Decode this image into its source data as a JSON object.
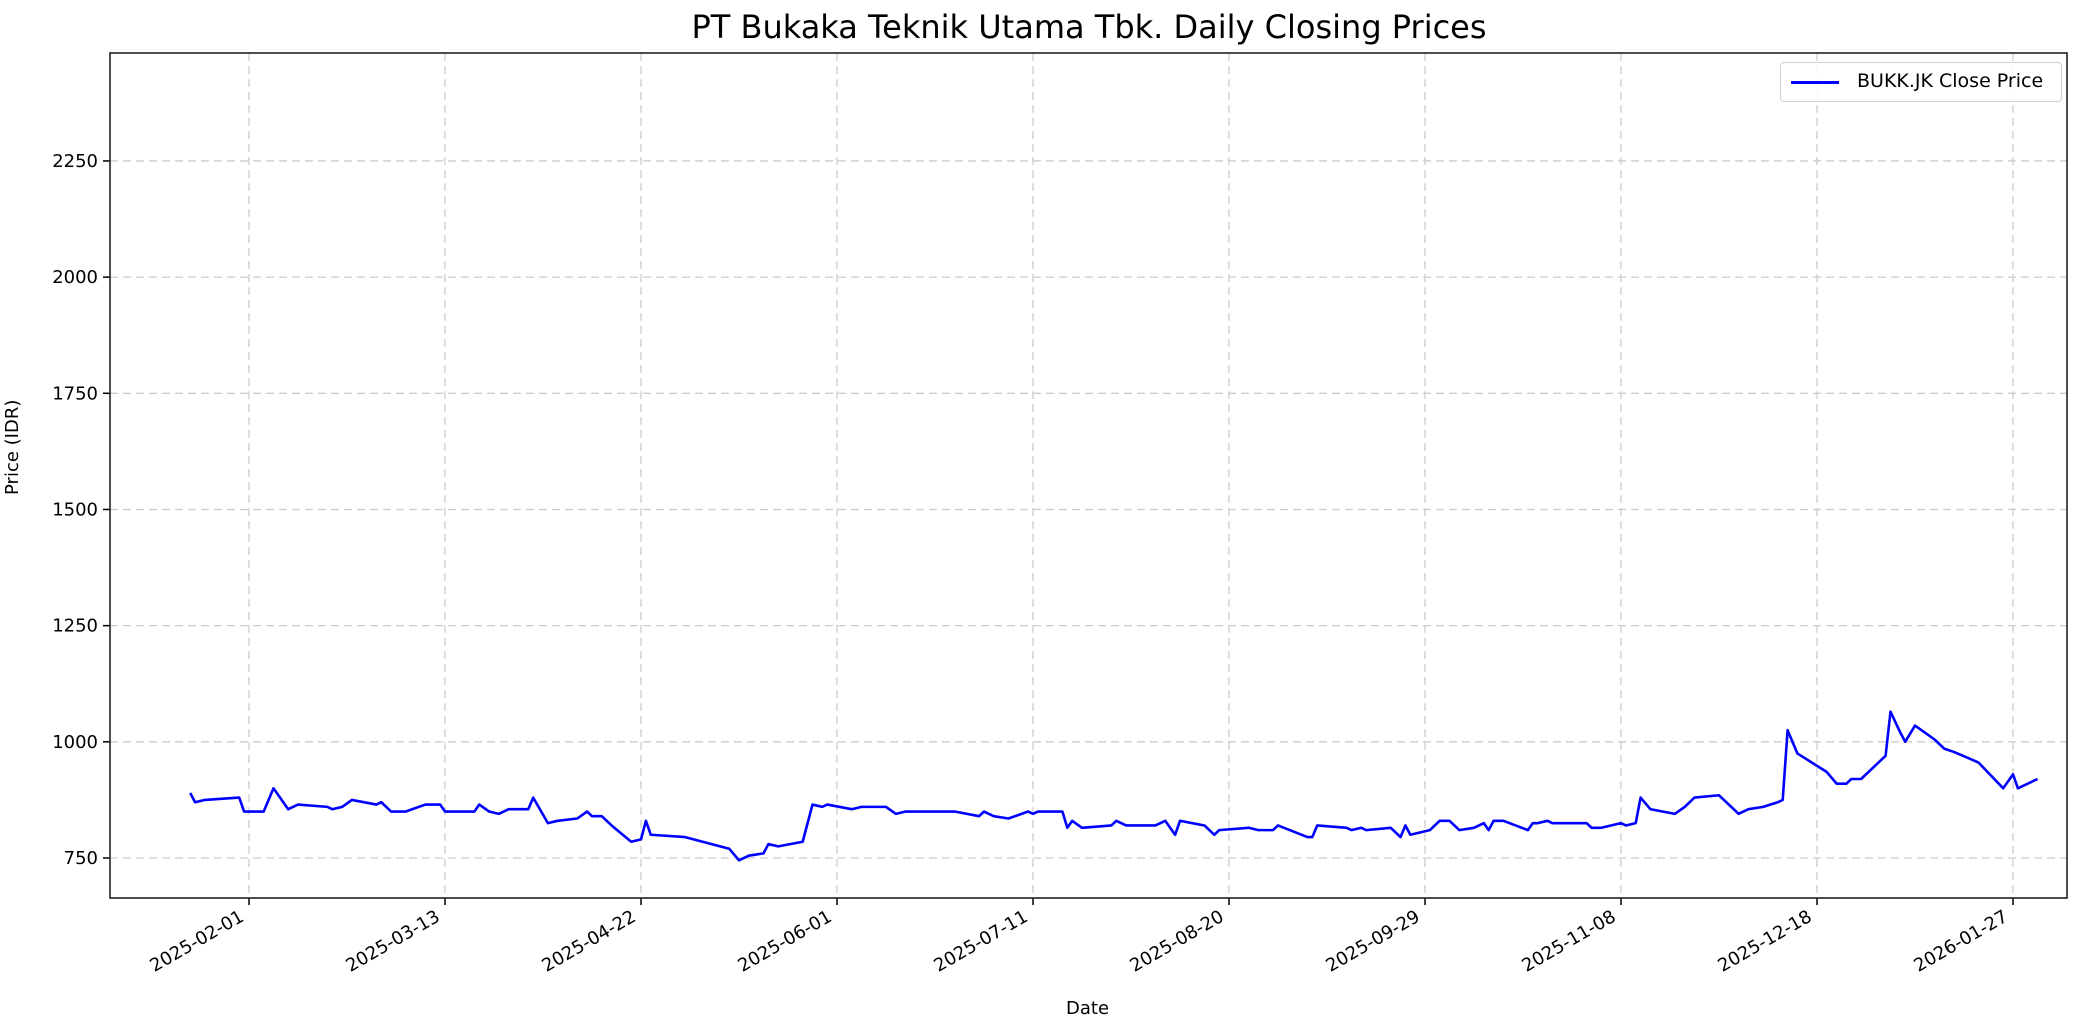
{
  "chart_data": {
    "type": "line",
    "title": "PT Bukaka Teknik Utama Tbk. Daily Closing Prices",
    "xlabel": "Date",
    "ylabel": "Price (IDR)",
    "ylim": [
      665,
      2430
    ],
    "xlim": [
      "2025-01-11",
      "2026-02-05"
    ],
    "grid": true,
    "legend_position": "upper right",
    "x_ticks": [
      "2025-02-01",
      "2025-03-13",
      "2025-04-22",
      "2025-06-01",
      "2025-07-11",
      "2025-08-20",
      "2025-09-29",
      "2025-11-08",
      "2025-12-18",
      "2026-01-27"
    ],
    "y_ticks": [
      750,
      1000,
      1250,
      1500,
      1750,
      2000,
      2250
    ],
    "series": [
      {
        "name": "BUKK.JK Close Price",
        "color": "#0000ff",
        "points": [
          [
            "2025-01-20",
            890
          ],
          [
            "2025-01-21",
            870
          ],
          [
            "2025-01-23",
            875
          ],
          [
            "2025-01-30",
            880
          ],
          [
            "2025-01-31",
            850
          ],
          [
            "2025-02-04",
            850
          ],
          [
            "2025-02-06",
            900
          ],
          [
            "2025-02-09",
            855
          ],
          [
            "2025-02-11",
            865
          ],
          [
            "2025-02-17",
            860
          ],
          [
            "2025-02-18",
            855
          ],
          [
            "2025-02-20",
            860
          ],
          [
            "2025-02-22",
            875
          ],
          [
            "2025-02-27",
            865
          ],
          [
            "2025-02-28",
            870
          ],
          [
            "2025-03-02",
            850
          ],
          [
            "2025-03-05",
            850
          ],
          [
            "2025-03-09",
            865
          ],
          [
            "2025-03-12",
            865
          ],
          [
            "2025-03-13",
            850
          ],
          [
            "2025-03-19",
            850
          ],
          [
            "2025-03-20",
            865
          ],
          [
            "2025-03-22",
            850
          ],
          [
            "2025-03-24",
            845
          ],
          [
            "2025-03-26",
            855
          ],
          [
            "2025-03-30",
            855
          ],
          [
            "2025-03-31",
            880
          ],
          [
            "2025-04-03",
            825
          ],
          [
            "2025-04-05",
            830
          ],
          [
            "2025-04-09",
            835
          ],
          [
            "2025-04-11",
            850
          ],
          [
            "2025-04-12",
            840
          ],
          [
            "2025-04-14",
            840
          ],
          [
            "2025-04-16",
            820
          ],
          [
            "2025-04-20",
            785
          ],
          [
            "2025-04-22",
            790
          ],
          [
            "2025-04-23",
            830
          ],
          [
            "2025-04-24",
            800
          ],
          [
            "2025-05-01",
            795
          ],
          [
            "2025-05-10",
            770
          ],
          [
            "2025-05-12",
            745
          ],
          [
            "2025-05-14",
            755
          ],
          [
            "2025-05-17",
            760
          ],
          [
            "2025-05-18",
            780
          ],
          [
            "2025-05-20",
            775
          ],
          [
            "2025-05-25",
            785
          ],
          [
            "2025-05-27",
            865
          ],
          [
            "2025-05-29",
            860
          ],
          [
            "2025-05-30",
            865
          ],
          [
            "2025-06-04",
            855
          ],
          [
            "2025-06-06",
            860
          ],
          [
            "2025-06-11",
            860
          ],
          [
            "2025-06-13",
            845
          ],
          [
            "2025-06-15",
            850
          ],
          [
            "2025-06-20",
            850
          ],
          [
            "2025-06-25",
            850
          ],
          [
            "2025-06-30",
            840
          ],
          [
            "2025-07-01",
            850
          ],
          [
            "2025-07-03",
            840
          ],
          [
            "2025-07-06",
            835
          ],
          [
            "2025-07-10",
            850
          ],
          [
            "2025-07-11",
            845
          ],
          [
            "2025-07-12",
            850
          ],
          [
            "2025-07-17",
            850
          ],
          [
            "2025-07-18",
            815
          ],
          [
            "2025-07-19",
            830
          ],
          [
            "2025-07-21",
            815
          ],
          [
            "2025-07-27",
            820
          ],
          [
            "2025-07-28",
            830
          ],
          [
            "2025-07-30",
            820
          ],
          [
            "2025-08-05",
            820
          ],
          [
            "2025-08-07",
            830
          ],
          [
            "2025-08-09",
            800
          ],
          [
            "2025-08-10",
            830
          ],
          [
            "2025-08-15",
            820
          ],
          [
            "2025-08-17",
            800
          ],
          [
            "2025-08-18",
            810
          ],
          [
            "2025-08-24",
            815
          ],
          [
            "2025-08-26",
            810
          ],
          [
            "2025-08-29",
            810
          ],
          [
            "2025-08-30",
            820
          ],
          [
            "2025-09-05",
            795
          ],
          [
            "2025-09-06",
            795
          ],
          [
            "2025-09-07",
            820
          ],
          [
            "2025-09-13",
            815
          ],
          [
            "2025-09-14",
            810
          ],
          [
            "2025-09-16",
            815
          ],
          [
            "2025-09-17",
            810
          ],
          [
            "2025-09-22",
            815
          ],
          [
            "2025-09-24",
            795
          ],
          [
            "2025-09-25",
            820
          ],
          [
            "2025-09-26",
            800
          ],
          [
            "2025-09-30",
            810
          ],
          [
            "2025-10-02",
            830
          ],
          [
            "2025-10-04",
            830
          ],
          [
            "2025-10-06",
            810
          ],
          [
            "2025-10-09",
            815
          ],
          [
            "2025-10-11",
            825
          ],
          [
            "2025-10-12",
            810
          ],
          [
            "2025-10-13",
            830
          ],
          [
            "2025-10-15",
            830
          ],
          [
            "2025-10-20",
            810
          ],
          [
            "2025-10-21",
            825
          ],
          [
            "2025-10-22",
            825
          ],
          [
            "2025-10-24",
            830
          ],
          [
            "2025-10-25",
            825
          ],
          [
            "2025-11-01",
            825
          ],
          [
            "2025-11-02",
            815
          ],
          [
            "2025-11-04",
            815
          ],
          [
            "2025-11-08",
            825
          ],
          [
            "2025-11-09",
            820
          ],
          [
            "2025-11-11",
            825
          ],
          [
            "2025-11-12",
            880
          ],
          [
            "2025-11-14",
            855
          ],
          [
            "2025-11-19",
            845
          ],
          [
            "2025-11-21",
            860
          ],
          [
            "2025-11-23",
            880
          ],
          [
            "2025-11-28",
            885
          ],
          [
            "2025-12-02",
            845
          ],
          [
            "2025-12-04",
            855
          ],
          [
            "2025-12-07",
            860
          ],
          [
            "2025-12-10",
            870
          ],
          [
            "2025-12-11",
            875
          ],
          [
            "2025-12-12",
            1025
          ],
          [
            "2025-12-14",
            975
          ],
          [
            "2025-12-20",
            935
          ],
          [
            "2025-12-22",
            910
          ],
          [
            "2025-12-24",
            910
          ],
          [
            "2025-12-25",
            920
          ],
          [
            "2025-12-27",
            920
          ],
          [
            "2026-01-01",
            970
          ],
          [
            "2026-01-02",
            1065
          ],
          [
            "2026-01-04",
            1020
          ],
          [
            "2026-01-05",
            1000
          ],
          [
            "2026-01-07",
            1035
          ],
          [
            "2026-01-11",
            1005
          ],
          [
            "2026-01-13",
            985
          ],
          [
            "2026-01-15",
            978
          ],
          [
            "2026-01-19",
            960
          ],
          [
            "2026-01-20",
            955
          ],
          [
            "2026-01-25",
            900
          ],
          [
            "2026-01-27",
            930
          ],
          [
            "2026-01-28",
            900
          ],
          [
            "2026-02-01",
            920
          ]
        ]
      }
    ]
  },
  "legend": {
    "label": "BUKK.JK Close Price"
  }
}
